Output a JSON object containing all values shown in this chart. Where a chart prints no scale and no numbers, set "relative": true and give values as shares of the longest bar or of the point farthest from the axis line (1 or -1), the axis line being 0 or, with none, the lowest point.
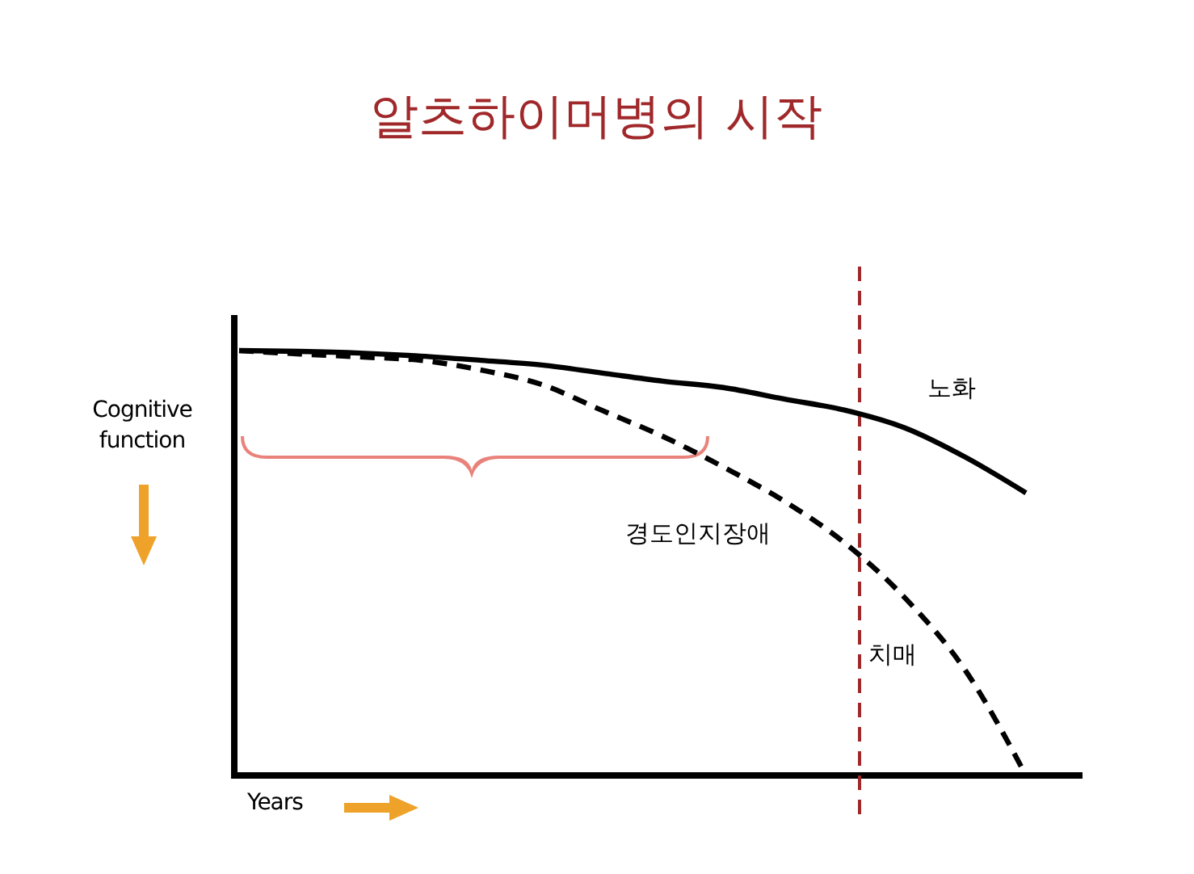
{
  "chart_data": {
    "type": "line",
    "title": "알츠하이머병의 시작",
    "xlabel": "Years",
    "ylabel": "Cognitive function",
    "relative": true,
    "legend": false,
    "grid": false,
    "marker": "none",
    "categories": [
      null,
      null,
      null,
      null,
      null,
      null,
      null,
      null,
      null,
      null,
      null,
      null,
      null,
      null
    ],
    "series": [
      {
        "name": "노화",
        "color": "#000000",
        "line_style": "solid",
        "values": [
          1,
          0.998,
          0.994,
          0.987,
          0.977,
          0.966,
          0.947,
          0.928,
          0.913,
          0.886,
          0.86,
          0.818,
          0.749,
          0.665
        ]
      },
      {
        "name": "치매",
        "color": "#000000",
        "line_style": "dashed",
        "values": [
          1,
          0.992,
          0.985,
          0.977,
          0.954,
          0.92,
          0.859,
          0.798,
          0.726,
          0.646,
          0.548,
          0.418,
          0.247,
          0
        ]
      }
    ],
    "annotations": [
      "경도인지장애"
    ]
  }
}
